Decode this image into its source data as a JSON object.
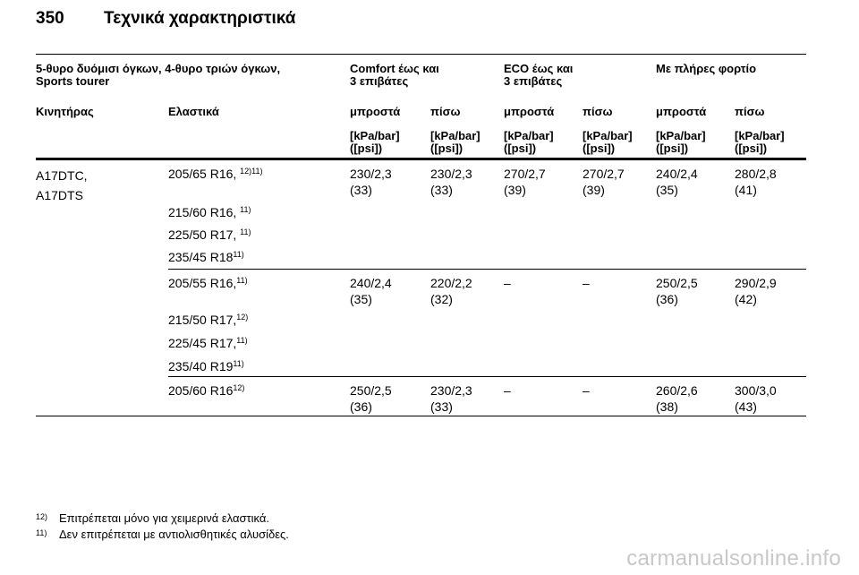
{
  "page": {
    "number": "350",
    "title": "Τεχνικά χαρακτηριστικά"
  },
  "header": {
    "vehicle_line1": "5-θυρο δυόμισι όγκων, 4-θυρο τριών όγκων,",
    "vehicle_line2": "Sports tourer",
    "comfort_line1": "Comfort έως και",
    "comfort_line2": "3 επιβάτες",
    "eco_line1": "ECO έως και",
    "eco_line2": "3 επιβάτες",
    "full_load": "Με πλήρες φορτίο",
    "engine": "Κινητήρας",
    "tyres": "Ελαστικά",
    "front": "μπροστά",
    "rear": "πίσω",
    "unit_line1": "[kPa/bar]",
    "unit_line2": "([psi])"
  },
  "engine": {
    "line1": "A17DTC,",
    "line2": "A17DTS"
  },
  "groups": [
    {
      "tyres": [
        {
          "size": "205/65 R16, ",
          "notes": "12)11)"
        },
        {
          "size": "215/60 R16, ",
          "notes": "11)"
        },
        {
          "size": "225/50 R17, ",
          "notes": "11)"
        },
        {
          "size": "235/45 R18",
          "notes": "11)"
        }
      ],
      "pressures": [
        {
          "kpa_bar": "230/2,3",
          "psi": "(33)"
        },
        {
          "kpa_bar": "230/2,3",
          "psi": "(33)"
        },
        {
          "kpa_bar": "270/2,7",
          "psi": "(39)"
        },
        {
          "kpa_bar": "270/2,7",
          "psi": "(39)"
        },
        {
          "kpa_bar": "240/2,4",
          "psi": "(35)"
        },
        {
          "kpa_bar": "280/2,8",
          "psi": "(41)"
        }
      ]
    },
    {
      "tyres": [
        {
          "size": "205/55 R16,",
          "notes": "11)"
        },
        {
          "size": "215/50 R17,",
          "notes": "12)"
        },
        {
          "size": "225/45 R17,",
          "notes": "11)"
        },
        {
          "size": "235/40 R19",
          "notes": "11)"
        }
      ],
      "pressures": [
        {
          "kpa_bar": "240/2,4",
          "psi": "(35)"
        },
        {
          "kpa_bar": "220/2,2",
          "psi": "(32)"
        },
        {
          "kpa_bar": "–",
          "psi": ""
        },
        {
          "kpa_bar": "–",
          "psi": ""
        },
        {
          "kpa_bar": "250/2,5",
          "psi": "(36)"
        },
        {
          "kpa_bar": "290/2,9",
          "psi": "(42)"
        }
      ]
    },
    {
      "tyres": [
        {
          "size": "205/60 R16",
          "notes": "12)"
        }
      ],
      "pressures": [
        {
          "kpa_bar": "250/2,5",
          "psi": "(36)"
        },
        {
          "kpa_bar": "230/2,3",
          "psi": "(33)"
        },
        {
          "kpa_bar": "–",
          "psi": ""
        },
        {
          "kpa_bar": "–",
          "psi": ""
        },
        {
          "kpa_bar": "260/2,6",
          "psi": "(38)"
        },
        {
          "kpa_bar": "300/3,0",
          "psi": "(43)"
        }
      ]
    }
  ],
  "footnotes": [
    {
      "mark": "12)",
      "text": "Επιτρέπεται μόνο για χειμερινά ελαστικά."
    },
    {
      "mark": "11)",
      "text": "Δεν επιτρέπεται με αντιολισθητικές αλυσίδες."
    }
  ],
  "watermark": "carmanualsonline.info"
}
